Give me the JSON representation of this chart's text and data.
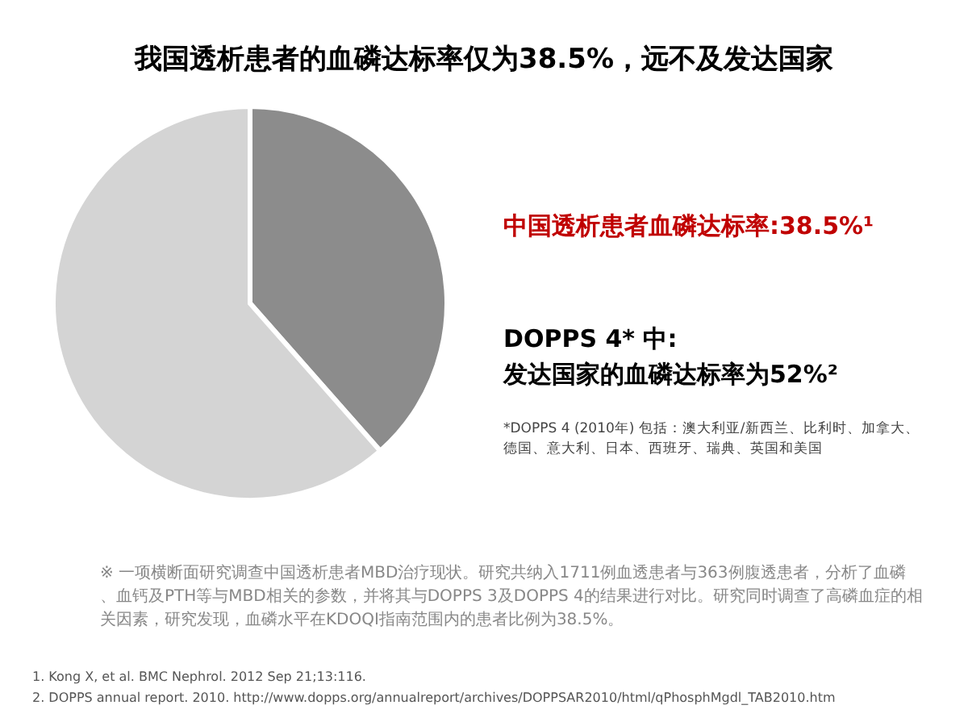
{
  "chart_data": {
    "type": "pie",
    "title": "我国透析患者的血磷达标率仅为38.5%，远不及发达国家",
    "categories": [
      null,
      null
    ],
    "values": [
      38.5,
      61.5
    ],
    "colors": [
      "#8c8c8c",
      "#d4d4d4"
    ],
    "annotations": [
      "中国透析患者血磷达标率:38.5%¹",
      "DOPPS 4* 中:\n发达国家的血磷达标率为52%²",
      "*DOPPS 4 (2010年) 包括：澳大利亚/新西兰、比利时、加拿大、德国、意大利、日本、西班牙、瑞典、英国和美国",
      "※ 一项横断面研究调查中国透析患者MBD治疗现状。研究共纳入1711例血透患者与363例腹透患者，分析了血磷、血钙及PTH等与MBD相关的参数，并将其与DOPPS 3及DOPPS 4的结果进行对比。研究同时调查了高磷血症的相关因素，研究发现，血磷水平在KDOQI指南范围内的患者比例为38.5%。",
      "1. Kong X, et al. BMC Nephrol. 2012 Sep 21;13:116.",
      "2. DOPPS annual report. 2010. http://www.dopps.org/annualreport/archives/DOPPSAR2010/html/qPhosphMgdl_TAB2010.htm"
    ]
  }
}
